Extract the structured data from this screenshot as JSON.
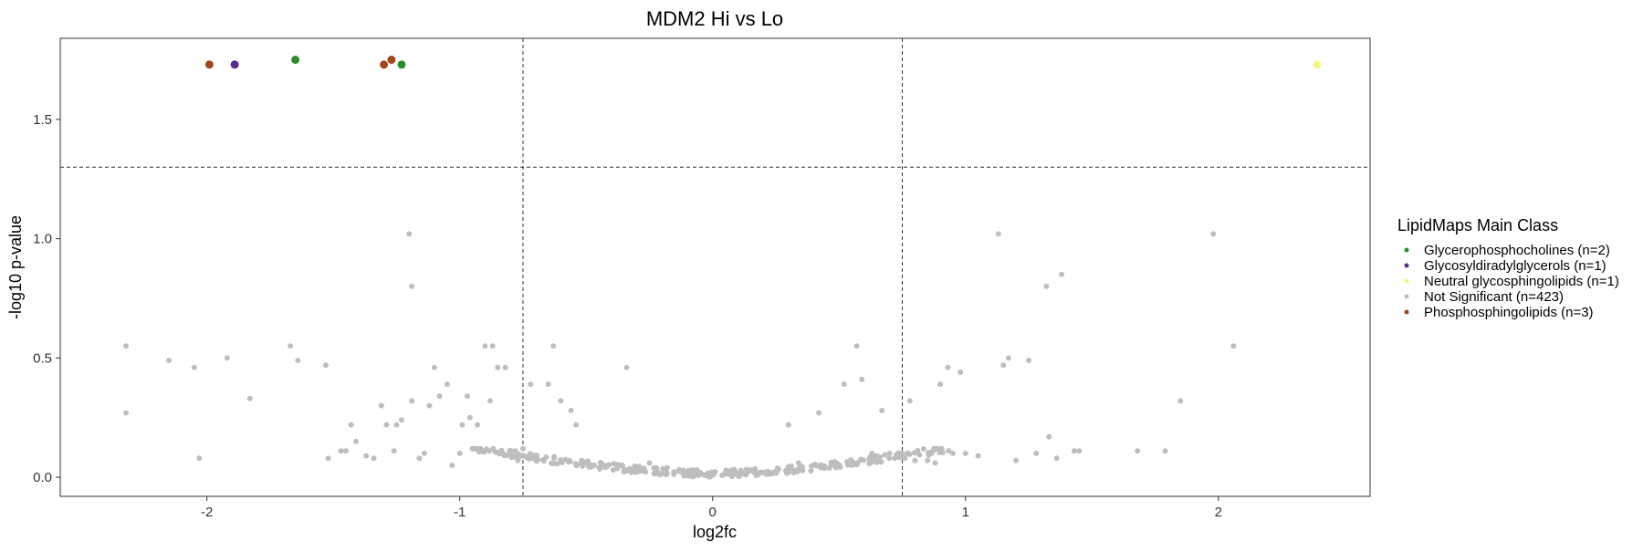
{
  "chart_data": {
    "type": "scatter",
    "title": "MDM2 Hi vs Lo",
    "xlabel": "log2fc",
    "ylabel": "-log10 p-value",
    "xlim": [
      -2.58,
      2.6
    ],
    "ylim": [
      -0.08,
      1.84
    ],
    "x_ticks": [
      -2,
      -1,
      0,
      1,
      2
    ],
    "y_ticks": [
      0.0,
      0.5,
      1.0,
      1.5
    ],
    "x_tick_labels": [
      "-2",
      "-1",
      "0",
      "1",
      "2"
    ],
    "y_tick_labels": [
      "0.0",
      "0.5",
      "1.0",
      "1.5"
    ],
    "grid": false,
    "thresholds": {
      "x": [
        -0.75,
        0.75
      ],
      "y": 1.3
    },
    "legend": {
      "title": "LipidMaps Main Class",
      "position": "right"
    },
    "series": [
      {
        "name": "Glycerophosphocholines (n=2)",
        "color": "#2e8b2e",
        "points": [
          [
            -1.65,
            1.75
          ],
          [
            -1.23,
            1.73
          ]
        ]
      },
      {
        "name": "Glycosyldiradylglycerols (n=1)",
        "color": "#5b2c8f",
        "points": [
          [
            -1.89,
            1.73
          ]
        ]
      },
      {
        "name": "Neutral glycosphingolipids (n=1)",
        "color": "#f5f58c",
        "points": [
          [
            2.39,
            1.73
          ]
        ]
      },
      {
        "name": "Not Significant (n=423)",
        "color": "#bebebe",
        "points": [
          [
            -2.32,
            0.55
          ],
          [
            -2.32,
            0.27
          ],
          [
            -2.15,
            0.49
          ],
          [
            -2.05,
            0.46
          ],
          [
            -2.03,
            0.08
          ],
          [
            -1.92,
            0.5
          ],
          [
            -1.83,
            0.33
          ],
          [
            -1.67,
            0.55
          ],
          [
            -1.64,
            0.49
          ],
          [
            -1.53,
            0.47
          ],
          [
            -1.52,
            0.08
          ],
          [
            -1.47,
            0.11
          ],
          [
            -1.45,
            0.11
          ],
          [
            -1.43,
            0.22
          ],
          [
            -1.41,
            0.15
          ],
          [
            -1.37,
            0.09
          ],
          [
            -1.34,
            0.08
          ],
          [
            -1.31,
            0.3
          ],
          [
            -1.29,
            0.22
          ],
          [
            -1.26,
            0.11
          ],
          [
            -1.25,
            0.22
          ],
          [
            -1.23,
            0.24
          ],
          [
            -1.2,
            1.02
          ],
          [
            -1.19,
            0.8
          ],
          [
            -1.19,
            0.32
          ],
          [
            -1.16,
            0.08
          ],
          [
            -1.14,
            0.1
          ],
          [
            -1.12,
            0.3
          ],
          [
            -1.1,
            0.46
          ],
          [
            -1.08,
            0.34
          ],
          [
            -1.05,
            0.39
          ],
          [
            -1.03,
            0.05
          ],
          [
            -1.0,
            0.1
          ],
          [
            -0.99,
            0.22
          ],
          [
            -0.97,
            0.34
          ],
          [
            -0.96,
            0.25
          ],
          [
            -0.93,
            0.22
          ],
          [
            -0.9,
            0.55
          ],
          [
            -0.88,
            0.32
          ],
          [
            -0.87,
            0.55
          ],
          [
            -0.85,
            0.46
          ],
          [
            -0.82,
            0.46
          ],
          [
            -0.8,
            0.1
          ],
          [
            -0.77,
            0.07
          ],
          [
            -0.75,
            0.12
          ],
          [
            -0.72,
            0.39
          ],
          [
            -0.65,
            0.39
          ],
          [
            -0.63,
            0.55
          ],
          [
            -0.6,
            0.32
          ],
          [
            -0.56,
            0.28
          ],
          [
            -0.54,
            0.22
          ],
          [
            -0.34,
            0.46
          ],
          [
            -0.25,
            0.06
          ],
          [
            -0.18,
            0.04
          ],
          [
            -0.05,
            0.02
          ],
          [
            0.0,
            0.01
          ],
          [
            0.05,
            0.02
          ],
          [
            0.15,
            0.03
          ],
          [
            0.3,
            0.22
          ],
          [
            0.34,
            0.06
          ],
          [
            0.42,
            0.27
          ],
          [
            0.48,
            0.05
          ],
          [
            0.52,
            0.39
          ],
          [
            0.57,
            0.55
          ],
          [
            0.59,
            0.41
          ],
          [
            0.63,
            0.1
          ],
          [
            0.67,
            0.28
          ],
          [
            0.7,
            0.1
          ],
          [
            0.72,
            0.08
          ],
          [
            0.75,
            0.1
          ],
          [
            0.78,
            0.32
          ],
          [
            0.8,
            0.07
          ],
          [
            0.85,
            0.07
          ],
          [
            0.88,
            0.06
          ],
          [
            0.9,
            0.39
          ],
          [
            0.93,
            0.46
          ],
          [
            0.95,
            0.1
          ],
          [
            0.98,
            0.44
          ],
          [
            1.0,
            0.1
          ],
          [
            1.05,
            0.09
          ],
          [
            1.13,
            1.02
          ],
          [
            1.15,
            0.47
          ],
          [
            1.17,
            0.5
          ],
          [
            1.2,
            0.07
          ],
          [
            1.25,
            0.49
          ],
          [
            1.28,
            0.1
          ],
          [
            1.32,
            0.8
          ],
          [
            1.33,
            0.17
          ],
          [
            1.36,
            0.08
          ],
          [
            1.38,
            0.85
          ],
          [
            1.43,
            0.11
          ],
          [
            1.45,
            0.11
          ],
          [
            1.68,
            0.11
          ],
          [
            1.79,
            0.11
          ],
          [
            1.85,
            0.32
          ],
          [
            1.98,
            1.02
          ],
          [
            2.06,
            0.55
          ]
        ]
      },
      {
        "name": "Phosphosphingolipids (n=3)",
        "color": "#a0451f",
        "points": [
          [
            -1.99,
            1.73
          ],
          [
            -1.3,
            1.73
          ],
          [
            -1.27,
            1.75
          ]
        ]
      }
    ]
  }
}
